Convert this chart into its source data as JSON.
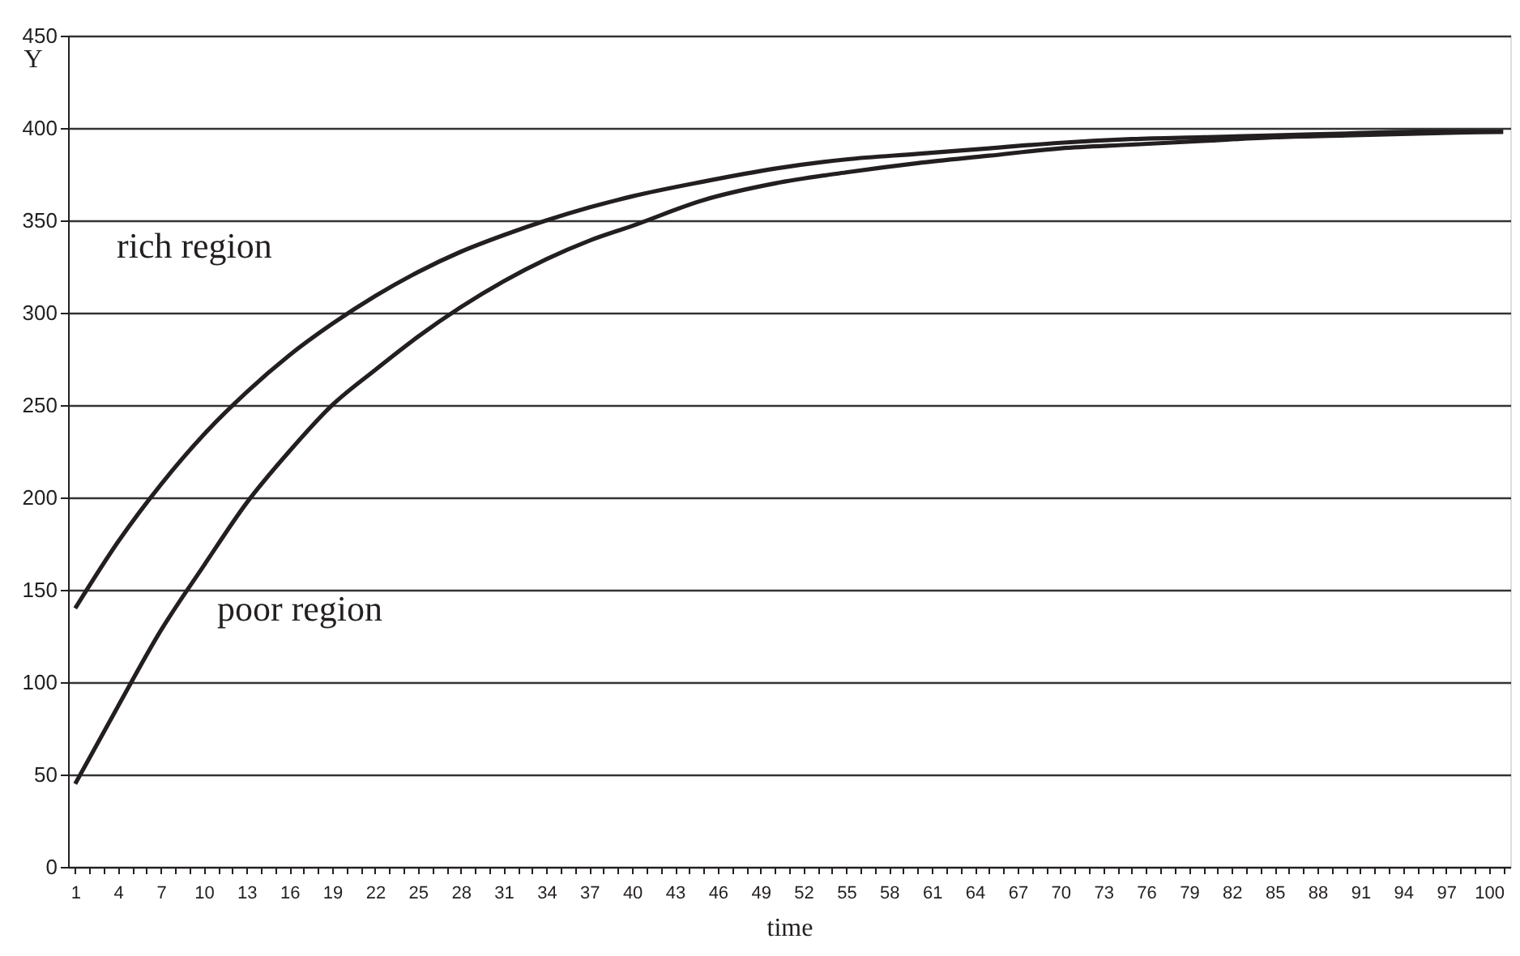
{
  "chart_data": {
    "type": "line",
    "xlabel": "time",
    "ylabel": "Y",
    "xlim": [
      0.5,
      101.5
    ],
    "ylim": [
      0,
      450
    ],
    "yticks": [
      0,
      50,
      100,
      150,
      200,
      250,
      300,
      350,
      400,
      450
    ],
    "xticks": [
      1,
      {
        "value": 2,
        "label": null
      },
      {
        "value": 3,
        "label": null
      },
      4,
      {
        "value": 5,
        "label": null
      },
      {
        "value": 6,
        "label": null
      },
      7,
      {
        "value": 8,
        "label": null
      },
      {
        "value": 9,
        "label": null
      },
      10,
      {
        "value": 11,
        "label": null
      },
      {
        "value": 12,
        "label": null
      },
      13,
      {
        "value": 14,
        "label": null
      },
      {
        "value": 15,
        "label": null
      },
      16,
      {
        "value": 17,
        "label": null
      },
      {
        "value": 18,
        "label": null
      },
      19,
      {
        "value": 20,
        "label": null
      },
      {
        "value": 21,
        "label": null
      },
      22,
      {
        "value": 23,
        "label": null
      },
      {
        "value": 24,
        "label": null
      },
      25,
      {
        "value": 26,
        "label": null
      },
      {
        "value": 27,
        "label": null
      },
      28,
      {
        "value": 29,
        "label": null
      },
      {
        "value": 30,
        "label": null
      },
      31,
      {
        "value": 32,
        "label": null
      },
      {
        "value": 33,
        "label": null
      },
      34,
      {
        "value": 35,
        "label": null
      },
      {
        "value": 36,
        "label": null
      },
      37,
      {
        "value": 38,
        "label": null
      },
      {
        "value": 39,
        "label": null
      },
      40,
      {
        "value": 41,
        "label": null
      },
      {
        "value": 42,
        "label": null
      },
      43,
      {
        "value": 44,
        "label": null
      },
      {
        "value": 45,
        "label": null
      },
      46,
      {
        "value": 47,
        "label": null
      },
      {
        "value": 48,
        "label": null
      },
      49,
      {
        "value": 50,
        "label": null
      },
      {
        "value": 51,
        "label": null
      },
      52,
      {
        "value": 53,
        "label": null
      },
      {
        "value": 54,
        "label": null
      },
      55,
      {
        "value": 56,
        "label": null
      },
      {
        "value": 57,
        "label": null
      },
      58,
      {
        "value": 59,
        "label": null
      },
      {
        "value": 60,
        "label": null
      },
      61,
      {
        "value": 62,
        "label": null
      },
      {
        "value": 63,
        "label": null
      },
      64,
      {
        "value": 65,
        "label": null
      },
      {
        "value": 66,
        "label": null
      },
      67,
      {
        "value": 68,
        "label": null
      },
      {
        "value": 69,
        "label": null
      },
      70,
      {
        "value": 71,
        "label": null
      },
      {
        "value": 72,
        "label": null
      },
      73,
      {
        "value": 74,
        "label": null
      },
      {
        "value": 75,
        "label": null
      },
      76,
      {
        "value": 77,
        "label": null
      },
      {
        "value": 78,
        "label": null
      },
      79,
      {
        "value": 80,
        "label": null
      },
      {
        "value": 81,
        "label": null
      },
      82,
      {
        "value": 83,
        "label": null
      },
      {
        "value": 84,
        "label": null
      },
      85,
      {
        "value": 86,
        "label": null
      },
      {
        "value": 87,
        "label": null
      },
      88,
      {
        "value": 89,
        "label": null
      },
      {
        "value": 90,
        "label": null
      },
      91,
      {
        "value": 92,
        "label": null
      },
      {
        "value": 93,
        "label": null
      },
      94,
      {
        "value": 95,
        "label": null
      },
      {
        "value": 96,
        "label": null
      },
      97,
      {
        "value": 98,
        "label": null
      },
      {
        "value": 99,
        "label": null
      },
      100,
      {
        "value": 101,
        "label": null
      }
    ],
    "x": [
      1,
      4,
      7,
      10,
      13,
      16,
      19,
      22,
      25,
      28,
      31,
      34,
      37,
      40,
      45,
      50,
      55,
      60,
      65,
      70,
      75,
      80,
      85,
      90,
      95,
      101
    ],
    "series": [
      {
        "color": "#231f20",
        "values": [
          140,
          176,
          207,
          234,
          257,
          277,
          294,
          309,
          322,
          333,
          342,
          350,
          357,
          363,
          371,
          378,
          383,
          386,
          389,
          392,
          394,
          395,
          396,
          397,
          398,
          398
        ]
      },
      {
        "color": "#231f20",
        "values": [
          45,
          87,
          128,
          163,
          197,
          225,
          250,
          269,
          287,
          303,
          317,
          329,
          339,
          347,
          361,
          370,
          376,
          381,
          385,
          389,
          391,
          393,
          395,
          396,
          397,
          398
        ]
      }
    ],
    "annotations": [
      "rich region",
      "poor region"
    ],
    "grid": "y",
    "marker": "none",
    "line_style": "solid"
  }
}
